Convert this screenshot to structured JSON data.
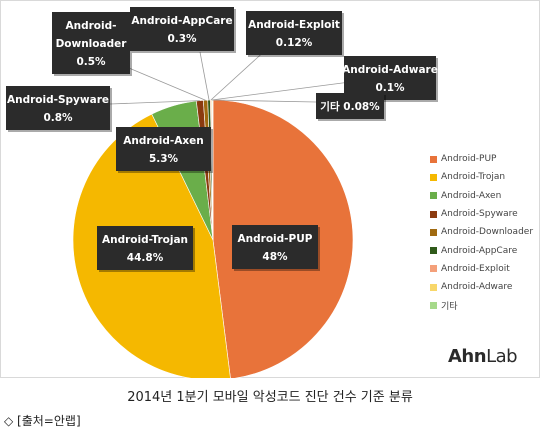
{
  "chart_data": {
    "type": "pie",
    "categories": [
      "Android-PUP",
      "Android-Trojan",
      "Android-Axen",
      "Android-Spyware",
      "Android-Downloader",
      "Android-AppCare",
      "Android-Exploit",
      "Android-Adware",
      "기타"
    ],
    "values": [
      48,
      44.8,
      5.3,
      0.8,
      0.5,
      0.3,
      0.12,
      0.1,
      0.08
    ],
    "value_labels": [
      "48%",
      "44.8%",
      "5.3%",
      "0.8%",
      "0.5%",
      "0.3%",
      "0.12%",
      "0.1%",
      "0.08%"
    ],
    "colors": [
      "#E8733A",
      "#F5B800",
      "#6AAE4A",
      "#8B3A0F",
      "#A06A10",
      "#2F5A1A",
      "#F4A07A",
      "#F8D76A",
      "#A6D98A"
    ],
    "label_text": {
      "pup": "Android-PUP",
      "trojan": "Android-Trojan",
      "axen": "Android-Axen",
      "spyware": "Android-Spyware",
      "downloader_line1": "Android-",
      "downloader_line2": "Downloader",
      "appcare": "Android-AppCare",
      "exploit": "Android-Exploit",
      "adware": "Android-Adware",
      "etc": "기타 0.08%"
    },
    "legend_position": "right"
  },
  "logo_text": {
    "ahn": "Ahn",
    "lab": "Lab"
  },
  "caption": "2014년 1분기 모바일 악성코드 진단 건수 기준 분류",
  "source": "◇ [출처=안랩]"
}
